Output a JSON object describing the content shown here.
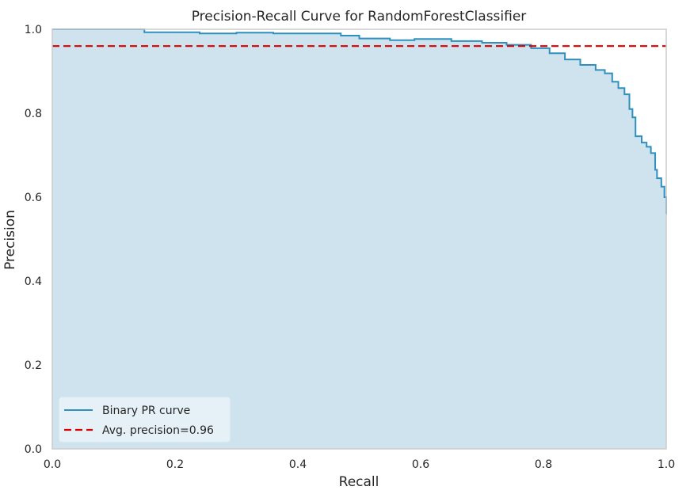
{
  "chart_data": {
    "type": "area",
    "title": "Precision-Recall Curve for RandomForestClassifier",
    "xlabel": "Recall",
    "ylabel": "Precision",
    "xlim": [
      0.0,
      1.0
    ],
    "ylim": [
      0.0,
      1.0
    ],
    "xticks": [
      "0.0",
      "0.2",
      "0.4",
      "0.6",
      "0.8",
      "1.0"
    ],
    "yticks": [
      "0.0",
      "0.2",
      "0.4",
      "0.6",
      "0.8",
      "1.0"
    ],
    "grid": false,
    "legend_position": "lower-left",
    "colors": {
      "curve": "#2f8fbd",
      "fill": "#cfe3ee",
      "avg_line": "#dd0000",
      "frame": "#cccccc",
      "legend_bg": "#eaf3f8"
    },
    "series": [
      {
        "name": "Binary PR curve",
        "x": [
          0.0,
          0.15,
          0.15,
          0.24,
          0.24,
          0.3,
          0.3,
          0.36,
          0.36,
          0.41,
          0.41,
          0.47,
          0.47,
          0.5,
          0.5,
          0.55,
          0.55,
          0.59,
          0.59,
          0.65,
          0.65,
          0.7,
          0.7,
          0.74,
          0.74,
          0.78,
          0.78,
          0.81,
          0.81,
          0.835,
          0.835,
          0.86,
          0.86,
          0.885,
          0.885,
          0.9,
          0.9,
          0.912,
          0.912,
          0.922,
          0.922,
          0.932,
          0.932,
          0.94,
          0.94,
          0.945,
          0.945,
          0.95,
          0.95,
          0.96,
          0.96,
          0.968,
          0.968,
          0.975,
          0.975,
          0.982,
          0.982,
          0.985,
          0.985,
          0.992,
          0.992,
          0.997,
          0.997,
          1.0,
          1.0
        ],
        "y": [
          1.0,
          1.0,
          0.993,
          0.993,
          0.99,
          0.99,
          0.992,
          0.992,
          0.99,
          0.99,
          0.99,
          0.99,
          0.985,
          0.985,
          0.978,
          0.978,
          0.974,
          0.974,
          0.977,
          0.977,
          0.972,
          0.972,
          0.968,
          0.968,
          0.963,
          0.963,
          0.955,
          0.955,
          0.943,
          0.943,
          0.928,
          0.928,
          0.915,
          0.915,
          0.903,
          0.903,
          0.895,
          0.895,
          0.875,
          0.875,
          0.86,
          0.86,
          0.845,
          0.845,
          0.81,
          0.81,
          0.79,
          0.79,
          0.745,
          0.745,
          0.73,
          0.73,
          0.72,
          0.72,
          0.705,
          0.705,
          0.665,
          0.665,
          0.645,
          0.645,
          0.625,
          0.625,
          0.6,
          0.6,
          0.56
        ]
      },
      {
        "name": "Avg. precision=0.96",
        "x": [
          0.0,
          1.0
        ],
        "y": [
          0.96,
          0.96
        ]
      }
    ]
  }
}
